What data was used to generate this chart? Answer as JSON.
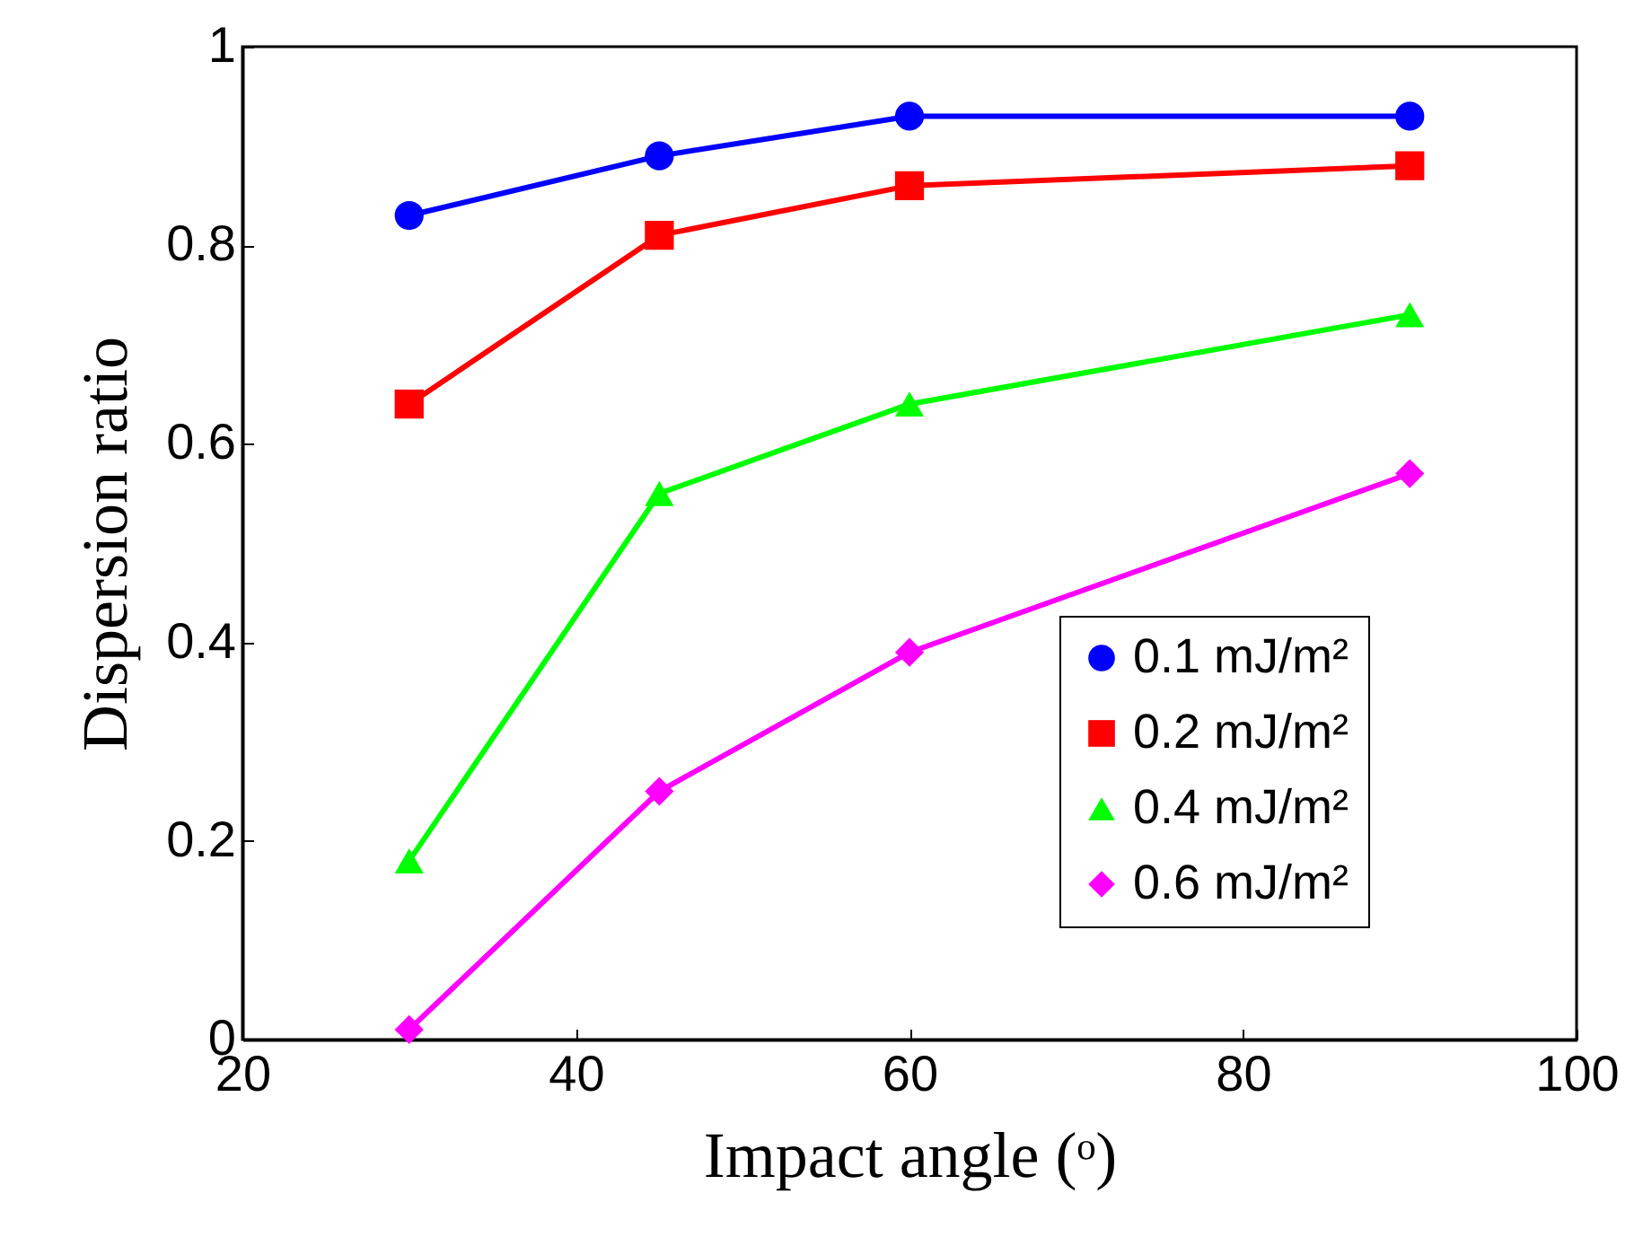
{
  "chart_data": {
    "type": "line",
    "xlabel": "Impact angle (ᵒ)",
    "ylabel": "Dispersion ratio",
    "x": [
      30,
      45,
      60,
      90
    ],
    "series": [
      {
        "name": "0.1 mJ/m²",
        "color": "#0000ff",
        "marker": "circle",
        "values": [
          0.83,
          0.89,
          0.93,
          0.93
        ]
      },
      {
        "name": "0.2 mJ/m²",
        "color": "#ff0000",
        "marker": "square",
        "values": [
          0.64,
          0.81,
          0.86,
          0.88
        ]
      },
      {
        "name": "0.4 mJ/m²",
        "color": "#00ff00",
        "marker": "triangle",
        "values": [
          0.18,
          0.55,
          0.64,
          0.73
        ]
      },
      {
        "name": "0.6 mJ/m²",
        "color": "#ff00ff",
        "marker": "diamond",
        "values": [
          0.01,
          0.25,
          0.39,
          0.57
        ]
      }
    ],
    "xlim": [
      20,
      100
    ],
    "xticks": [
      20,
      40,
      60,
      80,
      100
    ],
    "ylim": [
      0,
      1
    ],
    "yticks": [
      0,
      0.2,
      0.4,
      0.6,
      0.8,
      1
    ],
    "legend": "bottom right"
  }
}
